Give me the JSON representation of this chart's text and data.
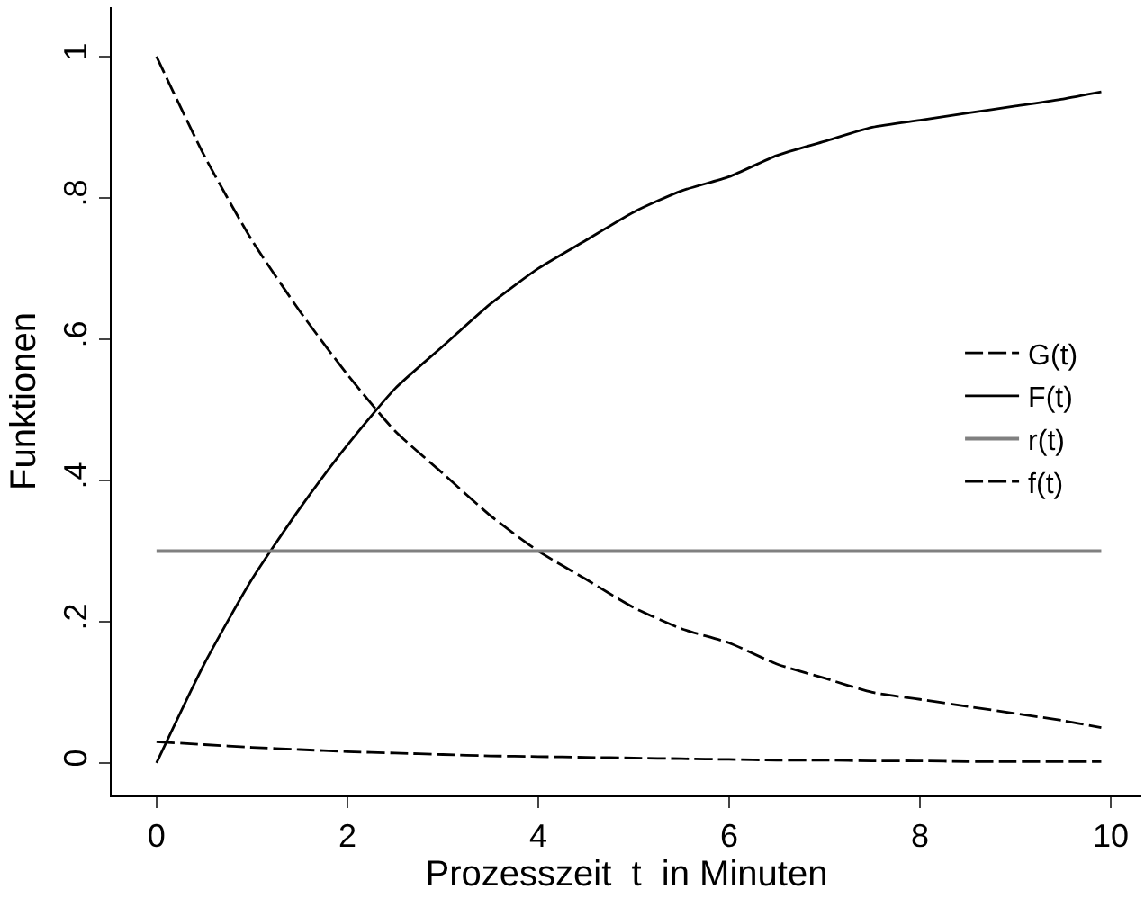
{
  "chart_data": {
    "type": "line",
    "xlabel": "Prozesszeit  t  in Minuten",
    "ylabel": "Funktionen",
    "x": [
      0,
      0.5,
      1,
      1.5,
      2,
      2.5,
      3,
      3.5,
      4,
      4.5,
      5,
      5.5,
      6,
      6.5,
      7,
      7.5,
      8,
      8.5,
      9,
      9.5,
      9.9
    ],
    "series": [
      {
        "name": "G(t)",
        "color": "#000000",
        "line_style": "dashed",
        "values": [
          1,
          0.86,
          0.74,
          0.64,
          0.55,
          0.47,
          0.41,
          0.35,
          0.3,
          0.26,
          0.22,
          0.19,
          0.17,
          0.14,
          0.12,
          0.1,
          0.09,
          0.08,
          0.07,
          0.06,
          0.05
        ]
      },
      {
        "name": "F(t)",
        "color": "#000000",
        "line_style": "solid",
        "values": [
          0,
          0.14,
          0.26,
          0.36,
          0.45,
          0.53,
          0.59,
          0.65,
          0.7,
          0.74,
          0.78,
          0.81,
          0.83,
          0.86,
          0.88,
          0.9,
          0.91,
          0.92,
          0.93,
          0.94,
          0.95
        ]
      },
      {
        "name": "r(t)",
        "color": "#808080",
        "line_style": "solid",
        "values": [
          0.3,
          0.3,
          0.3,
          0.3,
          0.3,
          0.3,
          0.3,
          0.3,
          0.3,
          0.3,
          0.3,
          0.3,
          0.3,
          0.3,
          0.3,
          0.3,
          0.3,
          0.3,
          0.3,
          0.3,
          0.3
        ]
      },
      {
        "name": "f(t)",
        "color": "#000000",
        "line_style": "dashed",
        "values": [
          0.03,
          0.026,
          0.022,
          0.019,
          0.016,
          0.014,
          0.012,
          0.01,
          0.009,
          0.008,
          0.007,
          0.006,
          0.005,
          0.004,
          0.004,
          0.003,
          0.003,
          0.002,
          0.002,
          0.002,
          0.002
        ]
      }
    ],
    "xlim": [
      -0.47,
      10.32
    ],
    "xticks": [
      0,
      2,
      4,
      6,
      8,
      10
    ],
    "ylim": [
      -0.046,
      1.07
    ],
    "yticks": [
      {
        "value": 0,
        "label": "0"
      },
      {
        "value": 0.2,
        "label": ".2"
      },
      {
        "value": 0.4,
        "label": ".4"
      },
      {
        "value": 0.6,
        "label": ".6"
      },
      {
        "value": 0.8,
        "label": ".8"
      },
      {
        "value": 1,
        "label": "1"
      }
    ],
    "legend": "right",
    "marker": "none"
  }
}
